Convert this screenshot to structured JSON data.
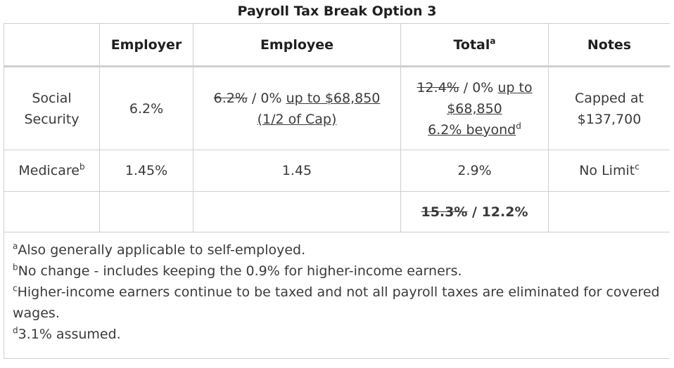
{
  "title": "Payroll Tax Break Option 3",
  "header": {
    "empty": "",
    "employer": "Employer",
    "employee": "Employee",
    "total": "Total",
    "total_sup": "a",
    "notes": "Notes"
  },
  "rows": {
    "social_security": {
      "label_line1": "Social",
      "label_line2": "Security",
      "employer": "6.2%",
      "employee_struck": "6.2%",
      "employee_sep": " / 0% ",
      "employee_underlined": "up to $68,850",
      "employee_line2": "(1/2 of Cap)",
      "total_struck": "12.4%",
      "total_sep": " / 0% ",
      "total_underlined_1": "up to",
      "total_underlined_2": "$68,850",
      "total_underlined_3": "6.2% beyond",
      "total_sup": "d",
      "notes_line1": "Capped at",
      "notes_line2": "$137,700"
    },
    "medicare": {
      "label": "Medicare",
      "label_sup": "b",
      "employer": "1.45%",
      "employee": "1.45",
      "total": "2.9%",
      "notes": "No Limit",
      "notes_sup": "c"
    },
    "total_row": {
      "struck": "15.3%",
      "rest": " / 12.2%"
    }
  },
  "footnotes": [
    {
      "sup": "a",
      "text": "Also generally applicable to self-employed."
    },
    {
      "sup": "b",
      "text": "No change - includes keeping the 0.9% for higher-income earners."
    },
    {
      "sup": "c",
      "text": "Higher-income earners continue to be taxed and not all payroll taxes are eliminated for covered wages."
    },
    {
      "sup": "d",
      "text": "3.1% assumed."
    }
  ]
}
